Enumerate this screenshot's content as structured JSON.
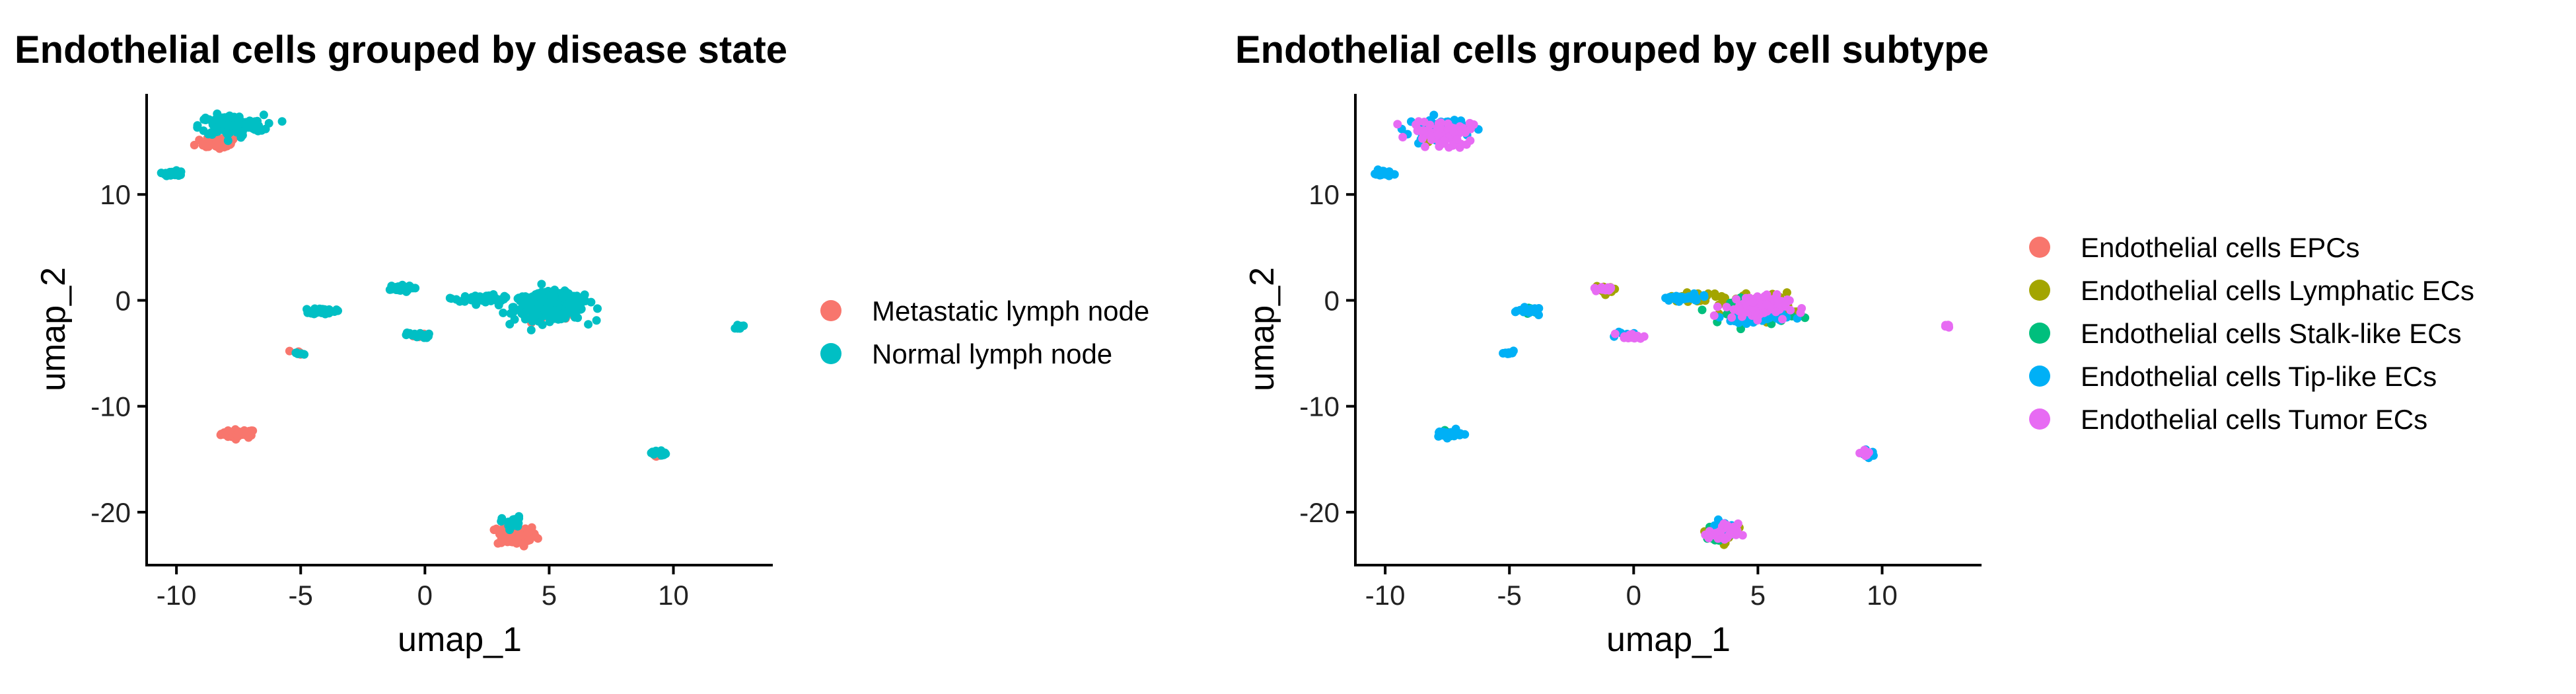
{
  "chart_data": [
    {
      "type": "scatter",
      "title": "Endothelial cells grouped by disease state",
      "xlabel": "umap_1",
      "ylabel": "umap_2",
      "xlim": [
        -11.2,
        14
      ],
      "ylim": [
        -25,
        19.5
      ],
      "xticks": [
        -10,
        -5,
        0,
        5,
        10
      ],
      "xtick_labels": [
        "-10",
        "-5",
        "0",
        "5",
        "10"
      ],
      "yticks": [
        -20,
        -10,
        0,
        10
      ],
      "ytick_labels": [
        "-20",
        "-10",
        "0",
        "10"
      ],
      "grid": false,
      "legend_position": "right",
      "series": [
        {
          "name": "Metastatic lymph node",
          "color": "#F8766D",
          "clusters": [
            {
              "x": -7.5,
              "y": -12.6,
              "spread_x": 0.7,
              "spread_y": 0.4,
              "n": 45
            },
            {
              "x": 3.7,
              "y": -22.2,
              "spread_x": 0.8,
              "spread_y": 1.0,
              "n": 80
            },
            {
              "x": -8.3,
              "y": 15.0,
              "spread_x": 0.9,
              "spread_y": 0.8,
              "n": 40
            },
            {
              "x": 9.3,
              "y": -14.6,
              "spread_x": 0.3,
              "spread_y": 0.3,
              "n": 10
            },
            {
              "x": -5.1,
              "y": -4.9,
              "spread_x": 0.2,
              "spread_y": 0.2,
              "n": 4
            },
            {
              "x": 4.8,
              "y": -1.2,
              "spread_x": 1.0,
              "spread_y": 0.8,
              "n": 12
            },
            {
              "x": -0.2,
              "y": -3.4,
              "spread_x": 0.4,
              "spread_y": 0.2,
              "n": 4
            }
          ]
        },
        {
          "name": "Normal lymph node",
          "color": "#00BFC4",
          "clusters": [
            {
              "x": 5.0,
              "y": -0.6,
              "spread_x": 1.4,
              "spread_y": 1.3,
              "n": 280
            },
            {
              "x": 2.4,
              "y": 0.2,
              "spread_x": 1.2,
              "spread_y": 0.3,
              "n": 60
            },
            {
              "x": -7.8,
              "y": 16.5,
              "spread_x": 1.3,
              "spread_y": 1.0,
              "n": 140
            },
            {
              "x": -10.1,
              "y": 12.0,
              "spread_x": 0.35,
              "spread_y": 0.3,
              "n": 30
            },
            {
              "x": -4.1,
              "y": -1.0,
              "spread_x": 0.5,
              "spread_y": 0.3,
              "n": 30
            },
            {
              "x": -1.1,
              "y": 1.1,
              "spread_x": 0.6,
              "spread_y": 0.3,
              "n": 35
            },
            {
              "x": -0.3,
              "y": -3.3,
              "spread_x": 0.5,
              "spread_y": 0.25,
              "n": 25
            },
            {
              "x": 12.6,
              "y": -2.5,
              "spread_x": 0.2,
              "spread_y": 0.2,
              "n": 8
            },
            {
              "x": 9.4,
              "y": -14.4,
              "spread_x": 0.3,
              "spread_y": 0.3,
              "n": 18
            },
            {
              "x": -5.0,
              "y": -5.0,
              "spread_x": 0.2,
              "spread_y": 0.2,
              "n": 6
            },
            {
              "x": 3.5,
              "y": -21.0,
              "spread_x": 0.4,
              "spread_y": 0.6,
              "n": 25
            }
          ]
        }
      ]
    },
    {
      "type": "scatter",
      "title": "Endothelial cells grouped by cell subtype",
      "xlabel": "umap_1",
      "ylabel": "umap_2",
      "xlim": [
        -11.2,
        14
      ],
      "ylim": [
        -25,
        19.5
      ],
      "xticks": [
        -10,
        -5,
        0,
        5,
        10
      ],
      "xtick_labels": [
        "-10",
        "-5",
        "0",
        "5",
        "10"
      ],
      "yticks": [
        -20,
        -10,
        0,
        10
      ],
      "ytick_labels": [
        "-20",
        "-10",
        "0",
        "10"
      ],
      "grid": false,
      "legend_position": "right",
      "series": [
        {
          "name": "Endothelial cells EPCs",
          "color": "#F8766D",
          "clusters": [
            {
              "x": 5.0,
              "y": -0.8,
              "spread_x": 1.2,
              "spread_y": 1.0,
              "n": 15
            }
          ]
        },
        {
          "name": "Endothelial cells Lymphatic ECs",
          "color": "#A3A500",
          "clusters": [
            {
              "x": 5.0,
              "y": -0.5,
              "spread_x": 1.4,
              "spread_y": 1.2,
              "n": 80
            },
            {
              "x": 2.5,
              "y": 0.3,
              "spread_x": 1.0,
              "spread_y": 0.4,
              "n": 25
            },
            {
              "x": 3.6,
              "y": -22.0,
              "spread_x": 0.5,
              "spread_y": 0.9,
              "n": 30
            },
            {
              "x": -1.0,
              "y": 1.0,
              "spread_x": 0.6,
              "spread_y": 0.3,
              "n": 10
            },
            {
              "x": -8.0,
              "y": 16.0,
              "spread_x": 1.0,
              "spread_y": 0.8,
              "n": 15
            }
          ]
        },
        {
          "name": "Endothelial cells Stalk-like ECs",
          "color": "#00BF7D",
          "clusters": [
            {
              "x": 5.2,
              "y": -1.0,
              "spread_x": 1.3,
              "spread_y": 1.2,
              "n": 60
            },
            {
              "x": 3.5,
              "y": -21.8,
              "spread_x": 0.5,
              "spread_y": 0.8,
              "n": 15
            },
            {
              "x": -7.5,
              "y": -12.6,
              "spread_x": 0.5,
              "spread_y": 0.3,
              "n": 10
            },
            {
              "x": -4.1,
              "y": -1.0,
              "spread_x": 0.4,
              "spread_y": 0.3,
              "n": 8
            }
          ]
        },
        {
          "name": "Endothelial cells Tip-like ECs",
          "color": "#00B0F6",
          "clusters": [
            {
              "x": -7.9,
              "y": 16.3,
              "spread_x": 1.2,
              "spread_y": 1.0,
              "n": 70
            },
            {
              "x": -10.1,
              "y": 12.0,
              "spread_x": 0.35,
              "spread_y": 0.3,
              "n": 25
            },
            {
              "x": -7.5,
              "y": -12.6,
              "spread_x": 0.6,
              "spread_y": 0.35,
              "n": 30
            },
            {
              "x": 9.4,
              "y": -14.5,
              "spread_x": 0.3,
              "spread_y": 0.3,
              "n": 15
            },
            {
              "x": -4.1,
              "y": -1.0,
              "spread_x": 0.5,
              "spread_y": 0.3,
              "n": 20
            },
            {
              "x": -5.0,
              "y": -5.0,
              "spread_x": 0.2,
              "spread_y": 0.2,
              "n": 8
            },
            {
              "x": 2.0,
              "y": 0.2,
              "spread_x": 1.0,
              "spread_y": 0.3,
              "n": 30
            },
            {
              "x": 4.8,
              "y": -1.5,
              "spread_x": 1.2,
              "spread_y": 1.0,
              "n": 50
            },
            {
              "x": -0.3,
              "y": -3.3,
              "spread_x": 0.4,
              "spread_y": 0.25,
              "n": 10
            },
            {
              "x": 3.5,
              "y": -21.5,
              "spread_x": 0.4,
              "spread_y": 0.6,
              "n": 15
            }
          ]
        },
        {
          "name": "Endothelial cells Tumor ECs",
          "color": "#E76BF3",
          "clusters": [
            {
              "x": -7.7,
              "y": 16.0,
              "spread_x": 1.2,
              "spread_y": 1.0,
              "n": 60
            },
            {
              "x": 4.9,
              "y": -0.6,
              "spread_x": 1.3,
              "spread_y": 1.1,
              "n": 90
            },
            {
              "x": 3.6,
              "y": -22.0,
              "spread_x": 0.6,
              "spread_y": 0.9,
              "n": 30
            },
            {
              "x": -0.1,
              "y": -3.4,
              "spread_x": 0.5,
              "spread_y": 0.3,
              "n": 15
            },
            {
              "x": 12.6,
              "y": -2.5,
              "spread_x": 0.2,
              "spread_y": 0.2,
              "n": 8
            },
            {
              "x": -1.1,
              "y": 1.1,
              "spread_x": 0.5,
              "spread_y": 0.3,
              "n": 15
            },
            {
              "x": 9.4,
              "y": -14.4,
              "spread_x": 0.25,
              "spread_y": 0.25,
              "n": 8
            },
            {
              "x": -7.4,
              "y": 14.8,
              "spread_x": 0.6,
              "spread_y": 0.4,
              "n": 20
            }
          ]
        }
      ]
    }
  ]
}
